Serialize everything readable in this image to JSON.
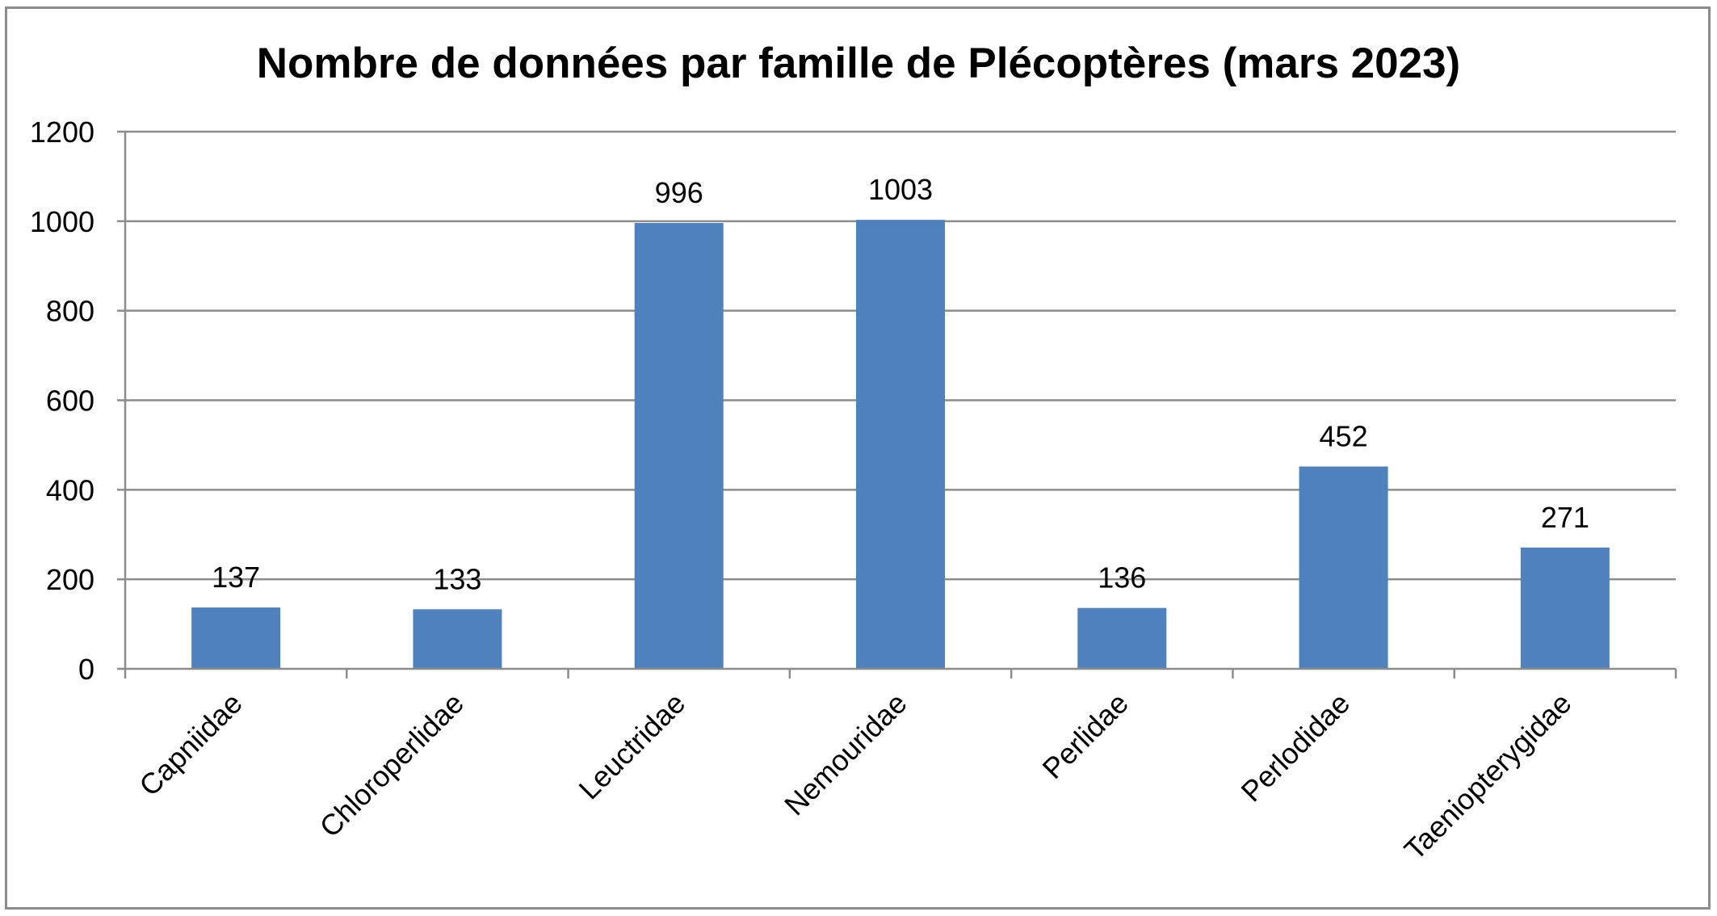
{
  "chart_data": {
    "type": "bar",
    "title": "Nombre de données par famille de Plécoptères (mars 2023)",
    "xlabel": "",
    "ylabel": "",
    "categories": [
      "Capniidae",
      "Chloroperlidae",
      "Leuctridae",
      "Nemouridae",
      "Perlidae",
      "Perlodidae",
      "Taeniopterygidae"
    ],
    "values": [
      137,
      133,
      996,
      1003,
      136,
      452,
      271
    ],
    "ylim": [
      0,
      1200
    ],
    "yticks": [
      "0",
      "200",
      "400",
      "600",
      "800",
      "1000",
      "1200"
    ],
    "data_labels": [
      "137",
      "133",
      "996",
      "1003",
      "136",
      "452",
      "271"
    ],
    "grid": true,
    "legend": "none",
    "colors": {
      "bar": "#4f81bd",
      "grid": "#8c8c8c",
      "axis": "#8c8c8c"
    }
  }
}
